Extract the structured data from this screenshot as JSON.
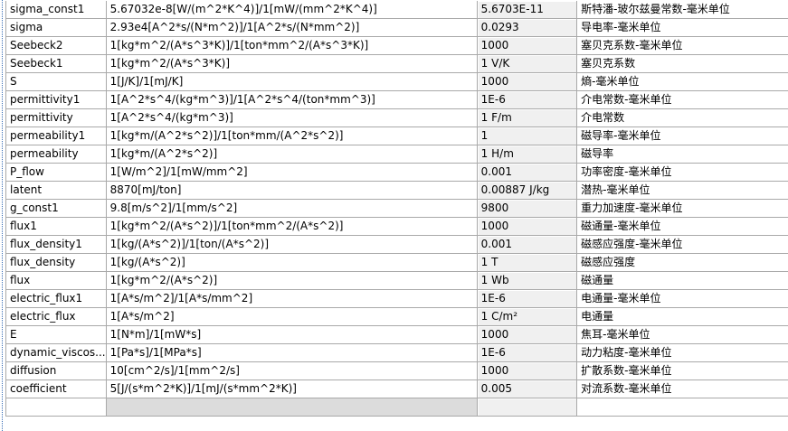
{
  "rows": [
    {
      "name": "sigma_const1",
      "expression": "5.67032e-8[W/(m^2*K^4)]/1[mW/(mm^2*K^4)]",
      "value": "5.6703E-11",
      "description": "斯特潘-玻尔兹曼常数-毫米单位"
    },
    {
      "name": "sigma",
      "expression": "2.93e4[A^2*s/(N*m^2)]/1[A^2*s/(N*mm^2)]",
      "value": "0.0293",
      "description": "导电率-毫米单位"
    },
    {
      "name": "Seebeck2",
      "expression": "1[kg*m^2/(A*s^3*K)]/1[ton*mm^2/(A*s^3*K)]",
      "value": "1000",
      "description": "塞贝克系数-毫米单位"
    },
    {
      "name": "Seebeck1",
      "expression": "1[kg*m^2/(A*s^3*K)]",
      "value": "1 V/K",
      "description": "塞贝克系数"
    },
    {
      "name": "S",
      "expression": "1[J/K]/1[mJ/K]",
      "value": "1000",
      "description": "熵-毫米单位"
    },
    {
      "name": "permittivity1",
      "expression": "1[A^2*s^4/(kg*m^3)]/1[A^2*s^4/(ton*mm^3)]",
      "value": "1E-6",
      "description": "介电常数-毫米单位"
    },
    {
      "name": "permittivity",
      "expression": "1[A^2*s^4/(kg*m^3)]",
      "value": "1 F/m",
      "description": "介电常数"
    },
    {
      "name": "permeability1",
      "expression": "1[kg*m/(A^2*s^2)]/1[ton*mm/(A^2*s^2)]",
      "value": "1",
      "description": "磁导率-毫米单位"
    },
    {
      "name": "permeability",
      "expression": "1[kg*m/(A^2*s^2)]",
      "value": "1 H/m",
      "description": "磁导率"
    },
    {
      "name": "P_flow",
      "expression": "1[W/m^2]/1[mW/mm^2]",
      "value": "0.001",
      "description": "功率密度-毫米单位"
    },
    {
      "name": "latent",
      "expression": "8870[mJ/ton]",
      "value": "0.00887 J/kg",
      "description": "潜热-毫米单位"
    },
    {
      "name": "g_const1",
      "expression": "9.8[m/s^2]/1[mm/s^2]",
      "value": "9800",
      "description": "重力加速度-毫米单位"
    },
    {
      "name": "flux1",
      "expression": "1[kg*m^2/(A*s^2)]/1[ton*mm^2/(A*s^2)]",
      "value": "1000",
      "description": "磁通量-毫米单位"
    },
    {
      "name": "flux_density1",
      "expression": "1[kg/(A*s^2)]/1[ton/(A*s^2)]",
      "value": "0.001",
      "description": "磁感应强度-毫米单位"
    },
    {
      "name": "flux_density",
      "expression": "1[kg/(A*s^2)]",
      "value": "1 T",
      "description": "磁感应强度"
    },
    {
      "name": "flux",
      "expression": "1[kg*m^2/(A*s^2)]",
      "value": "1 Wb",
      "description": "磁通量"
    },
    {
      "name": "electric_flux1",
      "expression": "1[A*s/m^2]/1[A*s/mm^2]",
      "value": "1E-6",
      "description": "电通量-毫米单位"
    },
    {
      "name": "electric_flux",
      "expression": "1[A*s/m^2]",
      "value": "1 C/m²",
      "description": "电通量"
    },
    {
      "name": "E",
      "expression": "1[N*m]/1[mW*s]",
      "value": "1000",
      "description": "焦耳-毫米单位"
    },
    {
      "name": "dynamic_viscos...",
      "expression": "1[Pa*s]/1[MPa*s]",
      "value": "1E-6",
      "description": "动力粘度-毫米单位"
    },
    {
      "name": "diffusion",
      "expression": "10[cm^2/s]/1[mm^2/s]",
      "value": "1000",
      "description": "扩散系数-毫米单位"
    },
    {
      "name": "coefficient",
      "expression": "5[J/(s*m^2*K)]/1[mJ/(s*mm^2*K)]",
      "value": "0.005",
      "description": "对流系数-毫米单位"
    }
  ]
}
